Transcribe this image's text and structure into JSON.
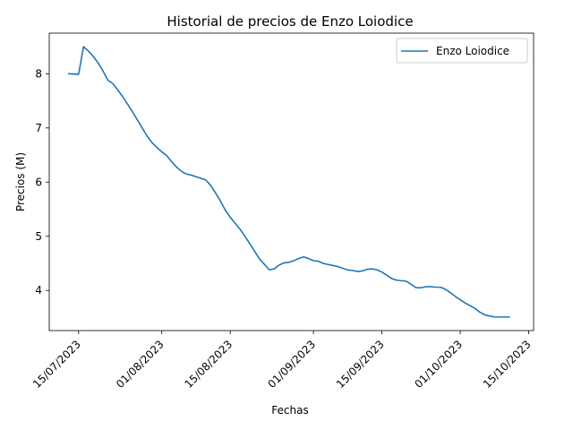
{
  "chart_data": {
    "type": "line",
    "title": "Historial de precios de Enzo Loiodice",
    "xlabel": "Fechas",
    "ylabel": "Precios (M)",
    "x_ticks": [
      "15/07/2023",
      "01/08/2023",
      "15/08/2023",
      "01/09/2023",
      "15/09/2023",
      "01/10/2023",
      "15/10/2023"
    ],
    "y_ticks": [
      "4",
      "5",
      "6",
      "7",
      "8"
    ],
    "ylim": [
      3.26,
      8.75
    ],
    "xlim": [
      "2023-07-09",
      "2023-10-16"
    ],
    "legend_position": "upper right",
    "series": [
      {
        "name": "Enzo Loiodice",
        "color": "#1f77b4",
        "x": [
          "2023-07-13",
          "2023-07-15",
          "2023-07-16",
          "2023-07-17",
          "2023-07-18",
          "2023-07-19",
          "2023-07-20",
          "2023-07-21",
          "2023-07-22",
          "2023-07-23",
          "2023-07-24",
          "2023-07-25",
          "2023-07-26",
          "2023-07-27",
          "2023-07-28",
          "2023-07-29",
          "2023-07-30",
          "2023-07-31",
          "2023-08-01",
          "2023-08-02",
          "2023-08-03",
          "2023-08-04",
          "2023-08-05",
          "2023-08-06",
          "2023-08-07",
          "2023-08-08",
          "2023-08-09",
          "2023-08-10",
          "2023-08-11",
          "2023-08-12",
          "2023-08-13",
          "2023-08-14",
          "2023-08-15",
          "2023-08-16",
          "2023-08-17",
          "2023-08-18",
          "2023-08-19",
          "2023-08-20",
          "2023-08-21",
          "2023-08-22",
          "2023-08-23",
          "2023-08-24",
          "2023-08-25",
          "2023-08-26",
          "2023-08-27",
          "2023-08-28",
          "2023-08-29",
          "2023-08-30",
          "2023-08-31",
          "2023-09-01",
          "2023-09-02",
          "2023-09-03",
          "2023-09-04",
          "2023-09-05",
          "2023-09-06",
          "2023-09-07",
          "2023-09-08",
          "2023-09-09",
          "2023-09-10",
          "2023-09-11",
          "2023-09-12",
          "2023-09-13",
          "2023-09-14",
          "2023-09-15",
          "2023-09-16",
          "2023-09-17",
          "2023-09-18",
          "2023-09-19",
          "2023-09-20",
          "2023-09-21",
          "2023-09-22",
          "2023-09-23",
          "2023-09-24",
          "2023-09-25",
          "2023-09-26",
          "2023-09-27",
          "2023-09-28",
          "2023-09-29",
          "2023-09-30",
          "2023-10-01",
          "2023-10-02",
          "2023-10-03",
          "2023-10-04",
          "2023-10-05",
          "2023-10-06",
          "2023-10-07",
          "2023-10-08",
          "2023-10-09",
          "2023-10-10",
          "2023-10-11"
        ],
        "y": [
          8.0,
          7.99,
          8.5,
          8.42,
          8.32,
          8.2,
          8.05,
          7.88,
          7.82,
          7.7,
          7.58,
          7.44,
          7.3,
          7.15,
          7.0,
          6.85,
          6.73,
          6.64,
          6.56,
          6.49,
          6.38,
          6.28,
          6.2,
          6.15,
          6.13,
          6.1,
          6.07,
          6.04,
          5.94,
          5.8,
          5.65,
          5.48,
          5.35,
          5.24,
          5.13,
          5.0,
          4.86,
          4.72,
          4.58,
          4.48,
          4.38,
          4.4,
          4.47,
          4.51,
          4.52,
          4.55,
          4.59,
          4.62,
          4.59,
          4.55,
          4.54,
          4.5,
          4.48,
          4.46,
          4.44,
          4.41,
          4.38,
          4.37,
          4.35,
          4.36,
          4.39,
          4.4,
          4.38,
          4.34,
          4.28,
          4.22,
          4.19,
          4.18,
          4.17,
          4.11,
          4.05,
          4.05,
          4.07,
          4.07,
          4.06,
          4.06,
          4.02,
          3.96,
          3.89,
          3.83,
          3.77,
          3.72,
          3.67,
          3.6,
          3.55,
          3.53,
          3.51,
          3.51,
          3.51,
          3.51
        ]
      }
    ]
  }
}
